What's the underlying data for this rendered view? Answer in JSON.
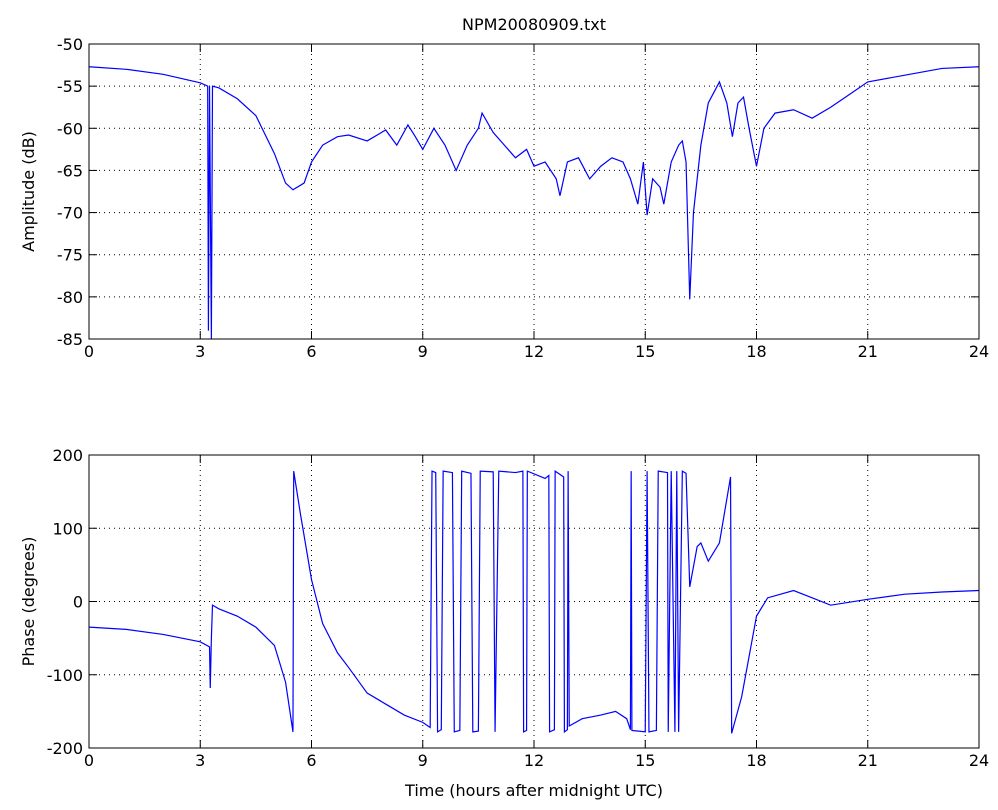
{
  "chart_data": [
    {
      "type": "line",
      "title": "NPM20080909.txt",
      "ylabel": "Amplitude (dB)",
      "color": "#0000ff",
      "grid": true,
      "xlim": [
        0,
        24
      ],
      "xticks": [
        0,
        3,
        6,
        9,
        12,
        15,
        18,
        21,
        24
      ],
      "ylim": [
        -85,
        -50
      ],
      "yticks": [
        -85,
        -80,
        -75,
        -70,
        -65,
        -60,
        -55,
        -50
      ],
      "x": [
        0,
        1,
        2,
        3,
        3.2,
        3.22,
        3.25,
        3.3,
        3.33,
        3.5,
        4,
        4.5,
        5,
        5.3,
        5.5,
        5.8,
        6,
        6.3,
        6.7,
        7,
        7.5,
        8,
        8.3,
        8.6,
        8.8,
        9,
        9.3,
        9.6,
        9.9,
        10.2,
        10.5,
        10.6,
        10.9,
        11.2,
        11.5,
        11.8,
        12,
        12.3,
        12.6,
        12.7,
        12.9,
        13.2,
        13.5,
        13.8,
        14.1,
        14.4,
        14.6,
        14.8,
        14.95,
        15.05,
        15.2,
        15.4,
        15.5,
        15.7,
        15.9,
        16,
        16.1,
        16.2,
        16.3,
        16.5,
        16.7,
        17,
        17.2,
        17.35,
        17.5,
        17.65,
        17.8,
        18,
        18.2,
        18.5,
        19,
        19.5,
        20,
        20.5,
        21,
        22,
        23,
        24
      ],
      "values": [
        -52.7,
        -53.0,
        -53.6,
        -54.6,
        -55,
        -84,
        -55,
        -85,
        -55,
        -55.2,
        -56.5,
        -58.5,
        -63,
        -66.5,
        -67.3,
        -66.5,
        -64,
        -62,
        -61,
        -60.8,
        -61.5,
        -60.2,
        -62,
        -59.6,
        -61,
        -62.5,
        -60,
        -62,
        -65,
        -62,
        -60,
        -58.2,
        -60.5,
        -62,
        -63.5,
        -62.5,
        -64.5,
        -64,
        -66,
        -68,
        -64,
        -63.5,
        -66,
        -64.5,
        -63.5,
        -64,
        -66,
        -69,
        -64,
        -70.3,
        -66,
        -67,
        -69,
        -64,
        -62,
        -61.5,
        -64,
        -80.3,
        -70,
        -62,
        -57,
        -54.5,
        -57,
        -61,
        -57,
        -56.3,
        -60,
        -64.5,
        -60,
        -58.2,
        -57.8,
        -58.8,
        -57.5,
        -56,
        -54.5,
        -53.7,
        -52.9,
        -52.7
      ]
    },
    {
      "type": "line",
      "xlabel": "Time (hours after midnight UTC)",
      "ylabel": "Phase (degrees)",
      "color": "#0000ff",
      "grid": true,
      "xlim": [
        0,
        24
      ],
      "xticks": [
        0,
        3,
        6,
        9,
        12,
        15,
        18,
        21,
        24
      ],
      "ylim": [
        -200,
        200
      ],
      "yticks": [
        -200,
        -100,
        0,
        100,
        200
      ],
      "x": [
        0,
        1,
        2,
        3,
        3.25,
        3.27,
        3.3,
        3.33,
        3.5,
        4,
        4.5,
        5,
        5.3,
        5.5,
        5.52,
        5.7,
        6,
        6.3,
        6.7,
        7,
        7.5,
        8,
        8.5,
        9,
        9.2,
        9.25,
        9.35,
        9.4,
        9.5,
        9.55,
        9.8,
        9.85,
        10.0,
        10.05,
        10.3,
        10.35,
        10.5,
        10.55,
        10.9,
        10.95,
        11.05,
        11.5,
        11.7,
        11.72,
        11.8,
        11.82,
        12.3,
        12.4,
        12.42,
        12.55,
        12.57,
        12.8,
        12.82,
        12.9,
        12.92,
        12.95,
        13.3,
        13.8,
        14.2,
        14.5,
        14.6,
        14.62,
        14.64,
        15.0,
        15.05,
        15.1,
        15.3,
        15.35,
        15.6,
        15.62,
        15.7,
        15.8,
        15.85,
        15.9,
        16.0,
        16.1,
        16.2,
        16.4,
        16.5,
        16.7,
        17,
        17.3,
        17.33,
        17.6,
        18,
        18.3,
        19,
        19.5,
        20,
        21,
        22,
        23,
        24
      ],
      "values": [
        -35,
        -38,
        -45,
        -55,
        -62,
        -118,
        -50,
        -5,
        -10,
        -20,
        -35,
        -60,
        -110,
        -178,
        178,
        120,
        30,
        -30,
        -70,
        -90,
        -125,
        -140,
        -155,
        -165,
        -172,
        178,
        176,
        -178,
        -175,
        178,
        176,
        -178,
        -176,
        178,
        175,
        -178,
        -177,
        178,
        177,
        -178,
        178,
        176,
        178,
        -178,
        -176,
        178,
        168,
        172,
        -178,
        -175,
        178,
        170,
        -178,
        -175,
        178,
        -170,
        -160,
        -155,
        -150,
        -160,
        -175,
        178,
        -176,
        -178,
        178,
        -178,
        -176,
        178,
        176,
        -178,
        178,
        -178,
        178,
        -178,
        178,
        175,
        20,
        75,
        80,
        55,
        80,
        170,
        -180,
        -130,
        -20,
        5,
        15,
        5,
        -5,
        3,
        10,
        13,
        15
      ]
    }
  ]
}
